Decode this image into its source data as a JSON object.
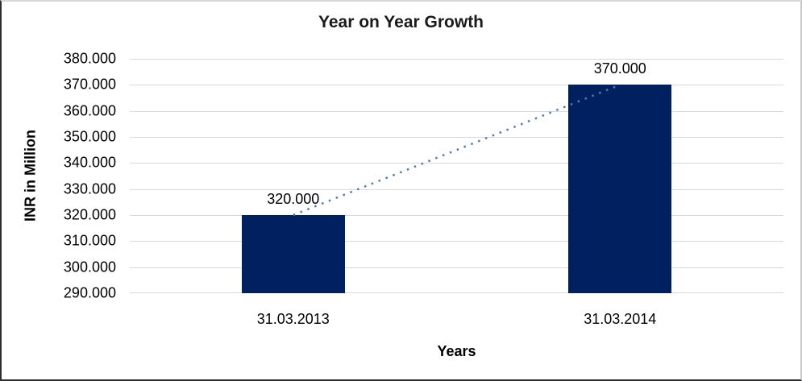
{
  "chart_data": {
    "type": "bar",
    "title": "Year on Year Growth",
    "xlabel": "Years",
    "ylabel": "INR in Million",
    "categories": [
      "31.03.2013",
      "31.03.2014"
    ],
    "values": [
      320,
      370
    ],
    "value_labels": [
      "320.000",
      "370.000"
    ],
    "y_ticks": [
      "380.000",
      "370.000",
      "360.000",
      "350.000",
      "340.000",
      "330.000",
      "320.000",
      "310.000",
      "300.000",
      "290.000"
    ],
    "ymin": 290,
    "ymax": 380,
    "grid": "horizontal",
    "legend": "none",
    "bar_color": "#002060",
    "trendline_color": "#4a7ebb",
    "gridline_color": "#d9d9d9",
    "trendline": {
      "style": "dotted",
      "connects": "bar tops",
      "from_value": 320,
      "to_value": 370
    }
  }
}
